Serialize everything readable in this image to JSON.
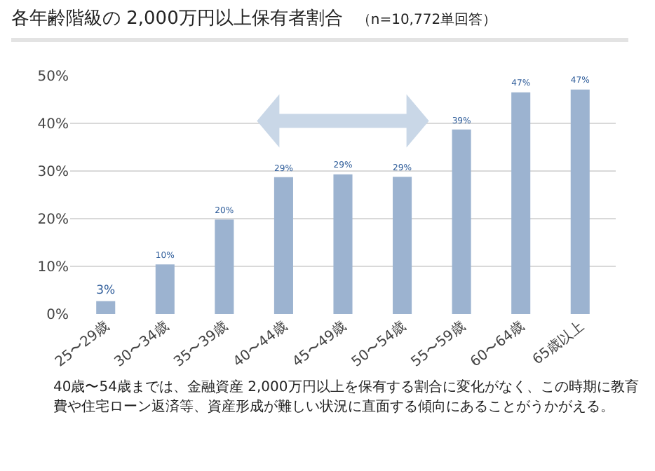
{
  "chart_data": {
    "type": "bar",
    "title": "各年齢階級の 2,000万円以上保有者割合",
    "subtitle": "（n=10,772単回答）",
    "categories": [
      "25〜29歳",
      "30〜34歳",
      "35〜39歳",
      "40〜44歳",
      "45〜49歳",
      "50〜54歳",
      "55〜59歳",
      "60〜64歳",
      "65歳以上"
    ],
    "values": [
      2.7,
      10.4,
      19.8,
      28.7,
      29.3,
      28.8,
      38.7,
      46.5,
      47.1
    ],
    "value_labels": [
      "3%",
      "10%",
      "20%",
      "29%",
      "29%",
      "29%",
      "39%",
      "47%",
      "47%"
    ],
    "color": "#9cb3d0",
    "ylim": [
      0,
      50
    ],
    "yticks": [
      {
        "value": 0,
        "label": "0%"
      },
      {
        "value": 10,
        "label": "10%"
      },
      {
        "value": 20,
        "label": "20%"
      },
      {
        "value": 30,
        "label": "30%"
      },
      {
        "value": 40,
        "label": "40%"
      },
      {
        "value": 50,
        "label": "50%"
      }
    ],
    "grid": "y",
    "legend": false,
    "annotations": [
      "40歳〜54歳までは、金融資産 2,000万円以上を保有する割合に変化がなく、この時期に教育費や住宅ローン返済等、資産形成が難しい状況に直面する傾向にあることがうかがえる。"
    ]
  }
}
